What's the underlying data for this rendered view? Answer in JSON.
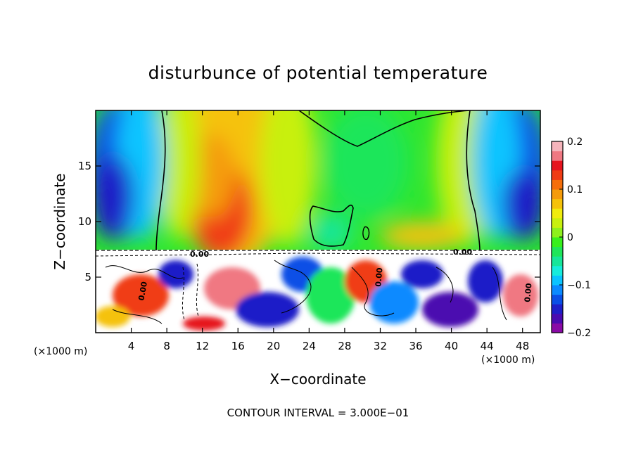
{
  "chart_data": {
    "type": "heatmap",
    "title": "disturbunce of potential temperature",
    "xlabel": "X−coordinate",
    "ylabel": "Z−coordinate",
    "x_unit_left": "(×1000 m)",
    "x_unit_right": "(×1000 m)",
    "xlim": [
      0,
      50
    ],
    "ylim": [
      0,
      20
    ],
    "x_ticks": [
      {
        "value": 4,
        "label": "4"
      },
      {
        "value": 8,
        "label": "8"
      },
      {
        "value": 12,
        "label": "12"
      },
      {
        "value": 16,
        "label": "16"
      },
      {
        "value": 20,
        "label": "20"
      },
      {
        "value": 24,
        "label": "24"
      },
      {
        "value": 28,
        "label": "28"
      },
      {
        "value": 32,
        "label": "32"
      },
      {
        "value": 36,
        "label": "36"
      },
      {
        "value": 40,
        "label": "40"
      },
      {
        "value": 44,
        "label": "44"
      },
      {
        "value": 48,
        "label": "48"
      }
    ],
    "y_ticks": [
      {
        "value": 5,
        "label": "5"
      },
      {
        "value": 10,
        "label": "10"
      },
      {
        "value": 15,
        "label": "15"
      }
    ],
    "colorbar": {
      "min": -0.2,
      "max": 0.2,
      "ticks": [
        {
          "value": 0.2,
          "label": "0.2"
        },
        {
          "value": 0.1,
          "label": "0.1"
        },
        {
          "value": 0,
          "label": "0"
        },
        {
          "value": -0.1,
          "label": "−0.1"
        },
        {
          "value": -0.2,
          "label": "−0.2"
        }
      ],
      "colors": [
        "#8a0aa6",
        "#4b0bb0",
        "#1f1fc8",
        "#0a4fe6",
        "#0a8aff",
        "#0ac4ff",
        "#17ecdc",
        "#17e69a",
        "#1fe65a",
        "#38f01c",
        "#8ef01c",
        "#c8f00e",
        "#f0ec0e",
        "#f5c20a",
        "#f59b0a",
        "#f56e0a",
        "#f03c14",
        "#e6141e",
        "#f07882",
        "#f5b4bb"
      ]
    },
    "contour_interval_text": "CONTOUR INTERVAL = 3.000E−01",
    "contour_labels": [
      "0.00",
      "0.00",
      "0.00",
      "0.00",
      "0.00"
    ]
  }
}
